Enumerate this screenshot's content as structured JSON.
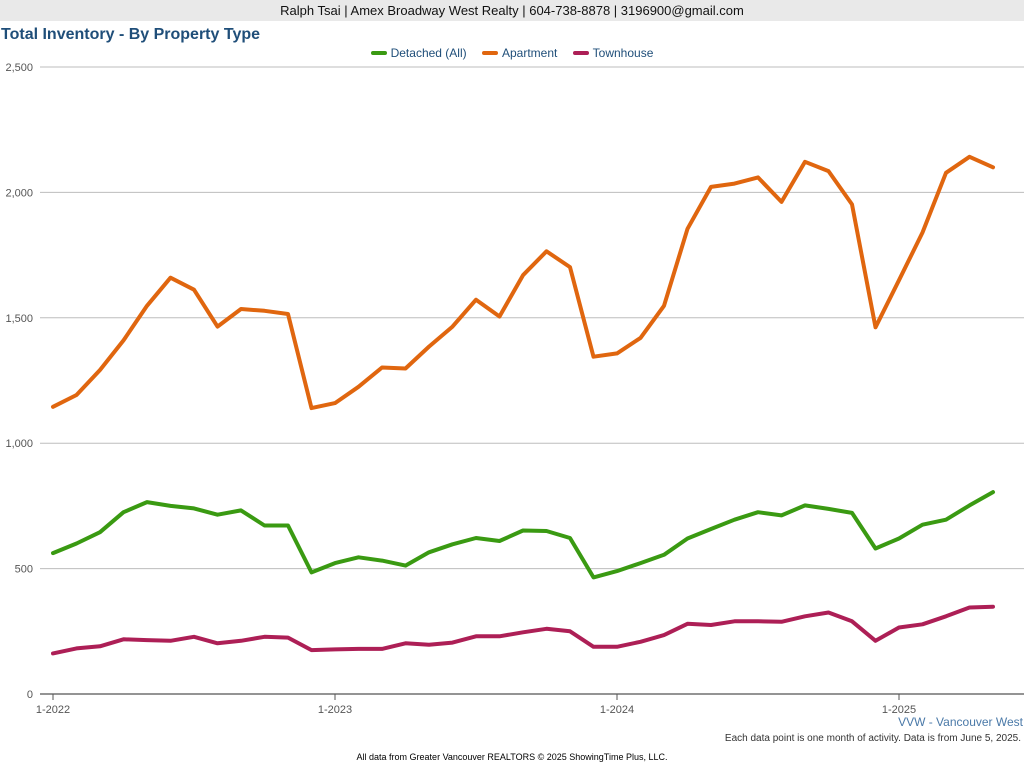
{
  "header": {
    "contact": "Ralph Tsai | Amex Broadway West Realty | 604-738-8878 | 3196900@gmail.com"
  },
  "footer": {
    "region": "VVW - Vancouver West",
    "note": "Each data point is one month of activity. Data is from June 5, 2025.",
    "credit": "All data from Greater Vancouver REALTORS © 2025 ShowingTime Plus, LLC."
  },
  "chart_data": {
    "type": "line",
    "title": "Total Inventory - By Property Type",
    "ylim": [
      0,
      2500
    ],
    "yticks": [
      0,
      500,
      1000,
      1500,
      2000,
      2500
    ],
    "ytick_labels": [
      "0",
      "500",
      "1,000",
      "1,500",
      "2,000",
      "2,500"
    ],
    "grid": true,
    "legend_position": "top-center",
    "x_months": [
      "1-2022",
      "2-2022",
      "3-2022",
      "4-2022",
      "5-2022",
      "6-2022",
      "7-2022",
      "8-2022",
      "9-2022",
      "10-2022",
      "11-2022",
      "12-2022",
      "1-2023",
      "2-2023",
      "3-2023",
      "4-2023",
      "5-2023",
      "6-2023",
      "7-2023",
      "8-2023",
      "9-2023",
      "10-2023",
      "11-2023",
      "12-2023",
      "1-2024",
      "2-2024",
      "3-2024",
      "4-2024",
      "5-2024",
      "6-2024",
      "7-2024",
      "8-2024",
      "9-2024",
      "10-2024",
      "11-2024",
      "12-2024",
      "1-2025",
      "2-2025",
      "3-2025",
      "4-2025",
      "5-2025"
    ],
    "xtick_labels": [
      "1-2022",
      "1-2023",
      "1-2024",
      "1-2025"
    ],
    "xtick_indices": [
      0,
      12,
      24,
      36
    ],
    "series": [
      {
        "name": "Detached (All)",
        "color": "#3a9a12",
        "values": [
          562,
          600,
          645,
          725,
          765,
          750,
          740,
          715,
          732,
          672,
          672,
          485,
          522,
          545,
          532,
          512,
          565,
          597,
          622,
          610,
          652,
          650,
          622,
          465,
          490,
          522,
          555,
          620,
          658,
          695,
          725,
          712,
          752,
          738,
          722,
          580,
          620,
          675,
          695,
          752,
          805
        ]
      },
      {
        "name": "Apartment",
        "color": "#e0660f",
        "values": [
          1145,
          1192,
          1292,
          1410,
          1548,
          1660,
          1612,
          1465,
          1535,
          1528,
          1515,
          1140,
          1160,
          1225,
          1302,
          1298,
          1385,
          1465,
          1572,
          1505,
          1670,
          1765,
          1702,
          1345,
          1358,
          1420,
          1548,
          1855,
          2022,
          2035,
          2060,
          1962,
          2122,
          2085,
          1952,
          1462,
          1650,
          1840,
          2078,
          2142,
          2100
        ]
      },
      {
        "name": "Townhouse",
        "color": "#ad1f56",
        "values": [
          162,
          182,
          190,
          218,
          215,
          212,
          228,
          202,
          212,
          228,
          225,
          175,
          178,
          180,
          180,
          202,
          196,
          205,
          230,
          230,
          246,
          260,
          250,
          188,
          188,
          208,
          235,
          280,
          275,
          290,
          290,
          288,
          310,
          325,
          290,
          212,
          265,
          278,
          310,
          345,
          348
        ]
      }
    ]
  }
}
